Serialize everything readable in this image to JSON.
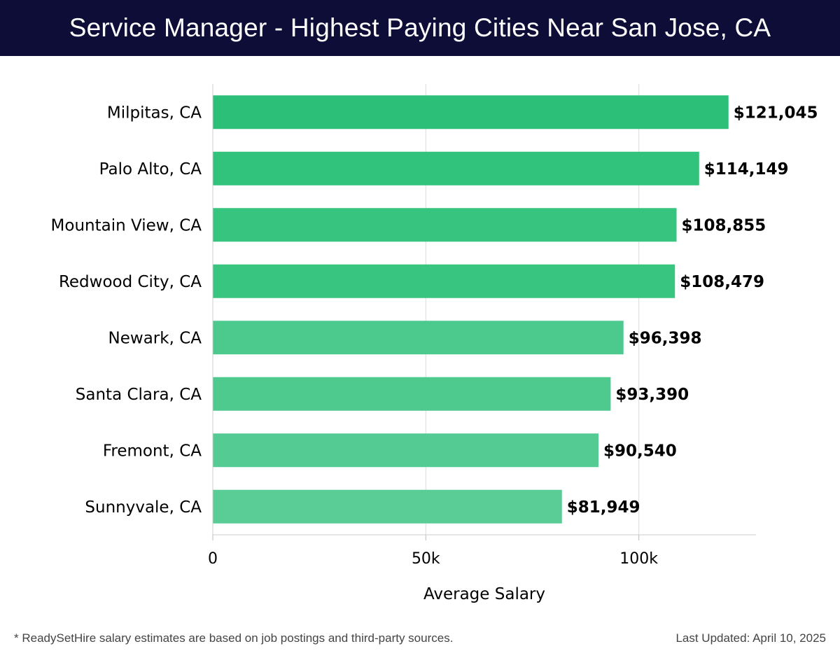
{
  "header": {
    "title": "Service Manager - Highest Paying Cities Near San Jose, CA"
  },
  "chart_data": {
    "type": "bar",
    "orientation": "horizontal",
    "categories": [
      "Milpitas, CA",
      "Palo Alto, CA",
      "Mountain View, CA",
      "Redwood City, CA",
      "Newark, CA",
      "Santa Clara, CA",
      "Fremont, CA",
      "Sunnyvale, CA"
    ],
    "values": [
      121045,
      114149,
      108855,
      108479,
      96398,
      93390,
      90540,
      81949
    ],
    "value_labels": [
      "$121,045",
      "$114,149",
      "$108,855",
      "$108,479",
      "$96,398",
      "$93,390",
      "$90,540",
      "$81,949"
    ],
    "bar_colors": [
      "#2bbf78",
      "#31c27c",
      "#36c47f",
      "#38c580",
      "#4cc98d",
      "#4fca8f",
      "#53cb92",
      "#5acd96"
    ],
    "xlabel": "Average Salary",
    "ylabel": "",
    "xlim": [
      0,
      127500
    ],
    "ticks": [
      0,
      50000,
      100000
    ],
    "tick_labels": [
      "0",
      "50k",
      "100k"
    ],
    "grid": true
  },
  "footer": {
    "note": "* ReadySetHire salary estimates are based on job postings and third-party sources.",
    "updated": "Last Updated: April 10, 2025"
  }
}
